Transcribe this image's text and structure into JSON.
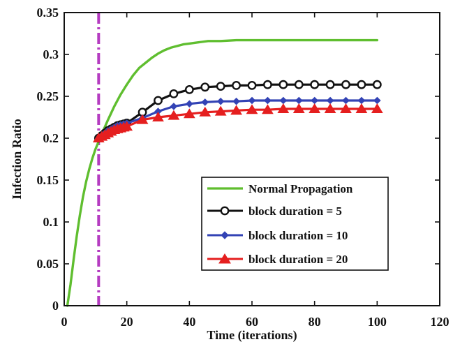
{
  "chart_data": {
    "type": "line",
    "title": "",
    "xlabel": "Time (iterations)",
    "ylabel": "Infection Ratio",
    "xlim": [
      0,
      120
    ],
    "ylim": [
      0,
      0.35
    ],
    "xticks": [
      0,
      20,
      40,
      60,
      80,
      100,
      120
    ],
    "yticks": [
      0,
      0.05,
      0.1,
      0.15,
      0.2,
      0.25,
      0.3,
      0.35
    ],
    "xtick_labels": [
      "0",
      "20",
      "40",
      "60",
      "80",
      "100",
      "120"
    ],
    "ytick_labels": [
      "0",
      "0.05",
      "0.1",
      "0.15",
      "0.2",
      "0.25",
      "0.3",
      "0.35"
    ],
    "legend_position": "lower-right",
    "grid": false,
    "vertical_marker": {
      "x": 11,
      "color": "#b43bc1",
      "style": "dash-dot"
    },
    "series": [
      {
        "name": "Normal Propagation",
        "color": "#5fbe2f",
        "marker": "none",
        "x": [
          1,
          2,
          3,
          4,
          5,
          6,
          7,
          8,
          9,
          10,
          11,
          12,
          14,
          16,
          18,
          20,
          22,
          24,
          26,
          28,
          30,
          32,
          34,
          36,
          38,
          40,
          42,
          44,
          46,
          48,
          50,
          55,
          60,
          65,
          70,
          75,
          80,
          85,
          90,
          95,
          100
        ],
        "values": [
          0.0,
          0.025,
          0.055,
          0.083,
          0.108,
          0.13,
          0.148,
          0.163,
          0.176,
          0.187,
          0.196,
          0.205,
          0.222,
          0.238,
          0.252,
          0.264,
          0.275,
          0.284,
          0.29,
          0.296,
          0.301,
          0.305,
          0.308,
          0.31,
          0.312,
          0.313,
          0.314,
          0.315,
          0.316,
          0.316,
          0.316,
          0.317,
          0.317,
          0.317,
          0.317,
          0.317,
          0.317,
          0.317,
          0.317,
          0.317,
          0.317
        ]
      },
      {
        "name": "block duration = 5",
        "color": "#111111",
        "marker": "circle",
        "x": [
          11,
          12,
          13,
          14,
          15,
          16,
          17,
          18,
          19,
          20,
          25,
          30,
          35,
          40,
          45,
          50,
          55,
          60,
          65,
          70,
          75,
          80,
          85,
          90,
          95,
          100
        ],
        "values": [
          0.2,
          0.203,
          0.206,
          0.209,
          0.211,
          0.213,
          0.215,
          0.216,
          0.217,
          0.218,
          0.231,
          0.245,
          0.253,
          0.258,
          0.261,
          0.262,
          0.263,
          0.263,
          0.264,
          0.264,
          0.264,
          0.264,
          0.264,
          0.264,
          0.264,
          0.264
        ]
      },
      {
        "name": "block duration = 10",
        "color": "#3343b5",
        "marker": "diamond",
        "x": [
          11,
          12,
          13,
          14,
          15,
          16,
          17,
          18,
          19,
          20,
          25,
          30,
          35,
          40,
          45,
          50,
          55,
          60,
          65,
          70,
          75,
          80,
          85,
          90,
          95,
          100
        ],
        "values": [
          0.2,
          0.203,
          0.206,
          0.209,
          0.211,
          0.213,
          0.215,
          0.216,
          0.217,
          0.218,
          0.224,
          0.232,
          0.238,
          0.241,
          0.243,
          0.244,
          0.244,
          0.245,
          0.245,
          0.245,
          0.245,
          0.245,
          0.245,
          0.245,
          0.245,
          0.245
        ]
      },
      {
        "name": "block duration = 20",
        "color": "#e51f1f",
        "marker": "triangle",
        "x": [
          11,
          12,
          13,
          14,
          15,
          16,
          17,
          18,
          19,
          20,
          25,
          30,
          35,
          40,
          45,
          50,
          55,
          60,
          65,
          70,
          75,
          80,
          85,
          90,
          95,
          100
        ],
        "values": [
          0.2,
          0.202,
          0.204,
          0.206,
          0.208,
          0.21,
          0.211,
          0.212,
          0.213,
          0.214,
          0.222,
          0.225,
          0.227,
          0.229,
          0.231,
          0.232,
          0.233,
          0.234,
          0.234,
          0.235,
          0.235,
          0.235,
          0.235,
          0.235,
          0.235,
          0.235
        ]
      }
    ]
  }
}
